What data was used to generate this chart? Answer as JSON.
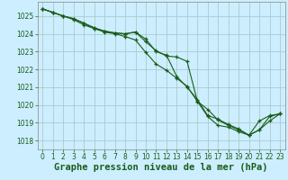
{
  "background_color": "#cceeff",
  "grid_color": "#aacccc",
  "line_color": "#1a5c1a",
  "marker_color": "#1a5c1a",
  "xlabel": "Graphe pression niveau de la mer (hPa)",
  "xlabel_fontsize": 7.5,
  "ylim": [
    1017.5,
    1025.8
  ],
  "xlim": [
    -0.5,
    23.5
  ],
  "yticks": [
    1018,
    1019,
    1020,
    1021,
    1022,
    1023,
    1024,
    1025
  ],
  "xticks": [
    0,
    1,
    2,
    3,
    4,
    5,
    6,
    7,
    8,
    9,
    10,
    11,
    12,
    13,
    14,
    15,
    16,
    17,
    18,
    19,
    20,
    21,
    22,
    23
  ],
  "tick_fontsize": 5.5,
  "series": [
    [
      1025.4,
      1025.2,
      1025.0,
      1024.8,
      1024.5,
      1024.3,
      1024.15,
      1024.05,
      1024.0,
      1024.1,
      1023.7,
      1023.0,
      1022.8,
      1021.6,
      1021.0,
      1020.3,
      1019.4,
      1019.2,
      1018.9,
      1018.65,
      1018.3,
      1019.1,
      1019.4,
      1019.5
    ],
    [
      1025.4,
      1025.2,
      1025.0,
      1024.85,
      1024.6,
      1024.35,
      1024.15,
      1024.05,
      1024.0,
      1024.1,
      1023.55,
      1023.05,
      1022.75,
      1022.7,
      1022.45,
      1020.2,
      1019.35,
      1018.85,
      1018.75,
      1018.5,
      1018.3,
      1018.6,
      1019.35,
      1019.5
    ],
    [
      1025.4,
      1025.2,
      1025.0,
      1024.85,
      1024.6,
      1024.3,
      1024.1,
      1024.0,
      1023.85,
      1023.65,
      1022.95,
      1022.3,
      1021.95,
      1021.5,
      1021.05,
      1020.2,
      1019.75,
      1019.15,
      1018.85,
      1018.6,
      1018.3,
      1018.6,
      1019.1,
      1019.5
    ]
  ]
}
